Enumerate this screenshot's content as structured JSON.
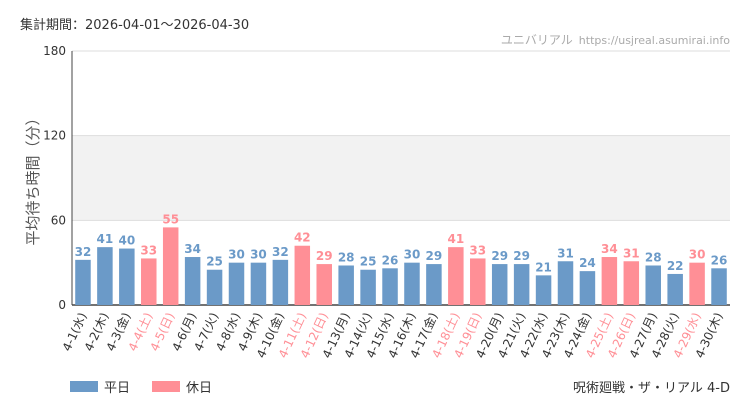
{
  "header": {
    "period_label": "集計期間：2026-04-01～2026-04-30",
    "brand": "ユニバリアル",
    "site": "https://usjreal.asumirai.info"
  },
  "footer": {
    "attraction": "呪術廻戦・ザ・リアル 4-D"
  },
  "legend": {
    "weekday_label": "平日",
    "holiday_label": "休日",
    "weekday_color": "#6b9ac8",
    "holiday_color": "#ff8f96"
  },
  "chart_data": {
    "type": "bar",
    "ylabel": "平均待ち時間（分）",
    "ylim": [
      0,
      180
    ],
    "yticks": [
      0,
      60,
      120,
      180
    ],
    "grid": true,
    "legend_position": "bottom-left",
    "categories": [
      "4-1(水)",
      "4-2(木)",
      "4-3(金)",
      "4-4(土)",
      "4-5(日)",
      "4-6(月)",
      "4-7(火)",
      "4-8(水)",
      "4-9(木)",
      "4-10(金)",
      "4-11(土)",
      "4-12(日)",
      "4-13(月)",
      "4-14(火)",
      "4-15(水)",
      "4-16(木)",
      "4-17(金)",
      "4-18(土)",
      "4-19(日)",
      "4-20(月)",
      "4-21(火)",
      "4-22(水)",
      "4-23(木)",
      "4-24(金)",
      "4-25(土)",
      "4-26(日)",
      "4-27(月)",
      "4-28(火)",
      "4-29(水)",
      "4-30(木)"
    ],
    "values": [
      32,
      41,
      40,
      33,
      55,
      34,
      25,
      30,
      30,
      32,
      42,
      29,
      28,
      25,
      26,
      30,
      29,
      41,
      33,
      29,
      29,
      21,
      31,
      24,
      34,
      31,
      28,
      22,
      30,
      26
    ],
    "holiday": [
      false,
      false,
      false,
      true,
      true,
      false,
      false,
      false,
      false,
      false,
      true,
      true,
      false,
      false,
      false,
      false,
      false,
      true,
      true,
      false,
      false,
      false,
      false,
      false,
      true,
      true,
      false,
      false,
      true,
      false
    ]
  }
}
